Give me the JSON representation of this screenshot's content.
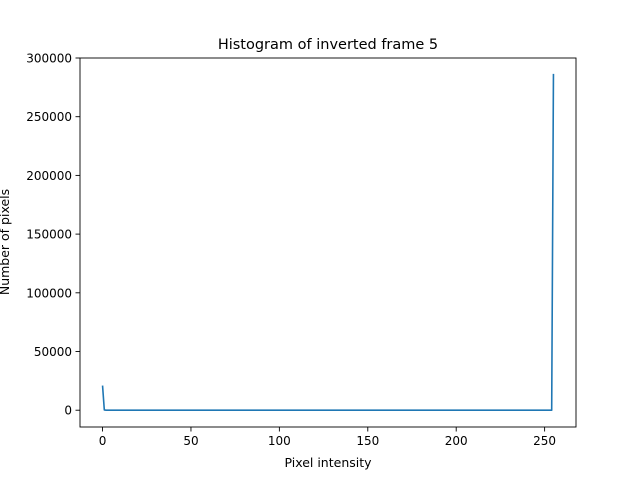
{
  "chart_data": {
    "type": "line",
    "title": "Histogram of inverted frame 5",
    "xlabel": "Pixel intensity",
    "ylabel": "Number of pixels",
    "xlim": [
      -12.75,
      267.75
    ],
    "ylim": [
      -14300,
      300000
    ],
    "x_ticks": [
      0,
      50,
      100,
      150,
      200,
      250
    ],
    "y_ticks": [
      0,
      50000,
      100000,
      150000,
      200000,
      250000,
      300000
    ],
    "grid": false,
    "legend": "none",
    "series": [
      {
        "color": "#1f77b4",
        "x": [
          0,
          1,
          2,
          10,
          50,
          100,
          150,
          200,
          250,
          254,
          255
        ],
        "values": [
          21000,
          200,
          0,
          0,
          0,
          0,
          0,
          0,
          0,
          0,
          286500
        ]
      }
    ]
  }
}
